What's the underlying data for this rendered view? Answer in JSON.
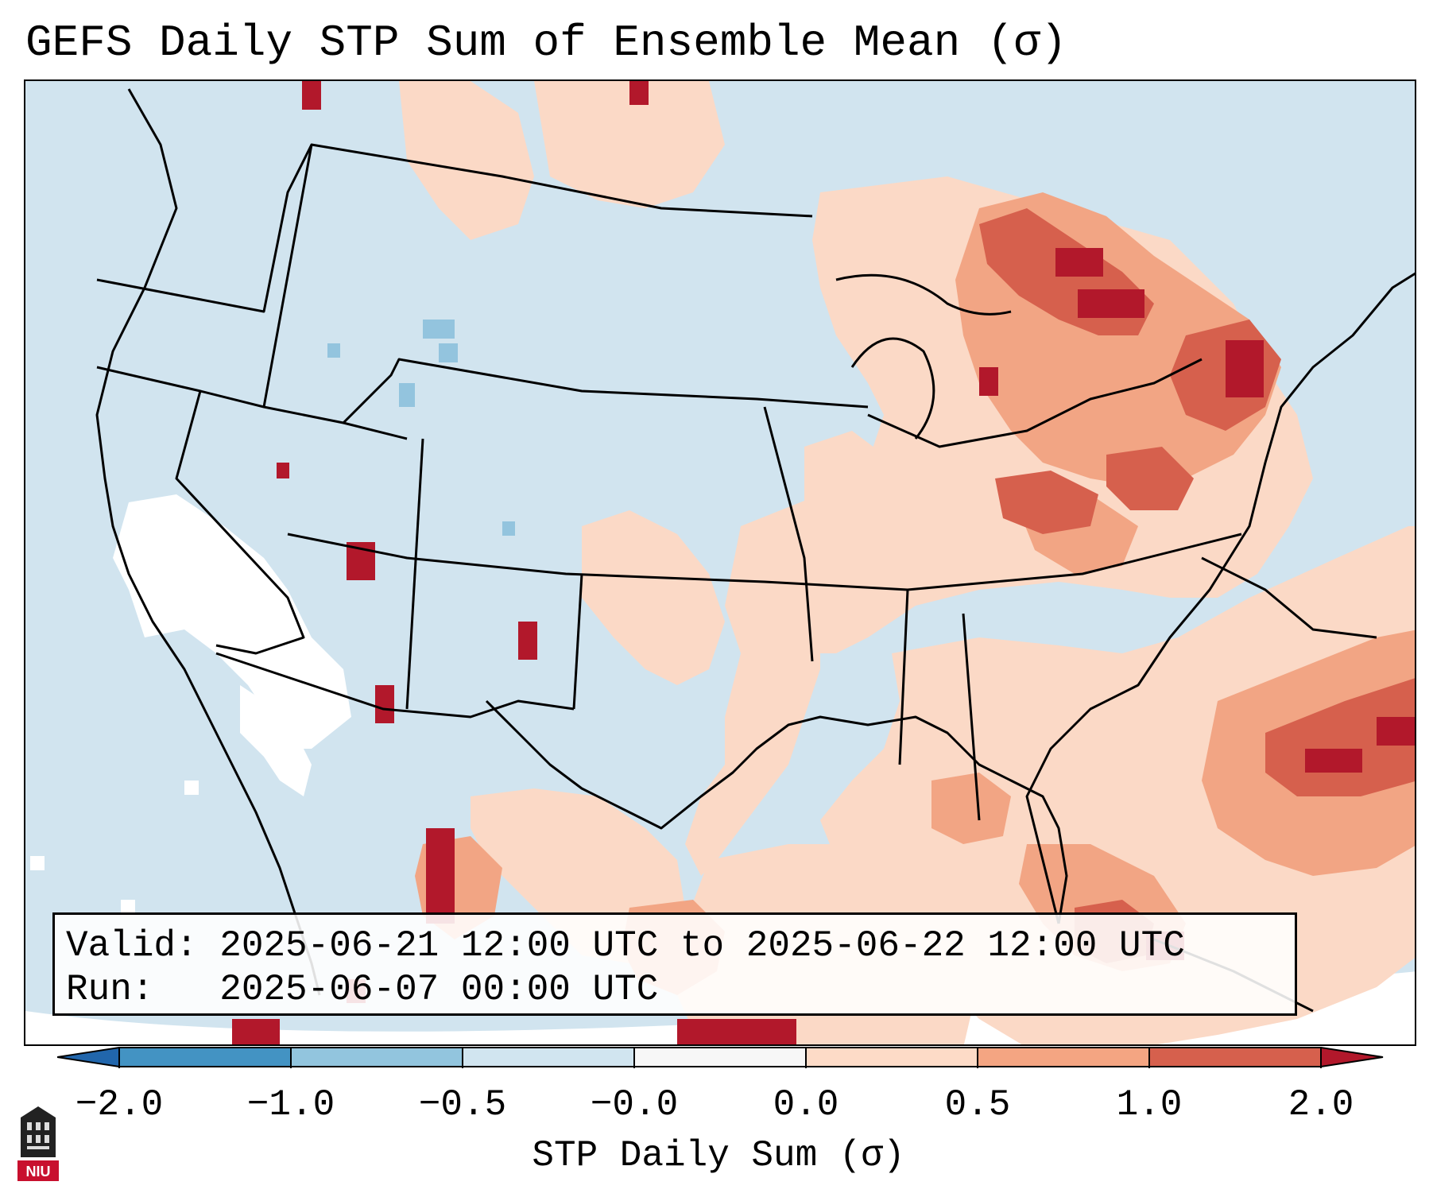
{
  "title": "GEFS Daily STP Sum of Ensemble Mean (σ)",
  "info": {
    "valid": "Valid: 2025-06-21 12:00 UTC to 2025-06-22 12:00 UTC",
    "run": "Run:   2025-06-07 00:00 UTC"
  },
  "colorbar": {
    "label": "STP Daily Sum (σ)",
    "ticks": [
      "−2.0",
      "−1.0",
      "−0.5",
      "−0.0",
      "0.0",
      "0.5",
      "1.0",
      "2.0"
    ],
    "bins": [
      {
        "range": "below -2.0",
        "color": "#2166ac"
      },
      {
        "range": "-2.0 to -1.0",
        "color": "#4393c3"
      },
      {
        "range": "-1.0 to -0.5",
        "color": "#92c5de"
      },
      {
        "range": "-0.5 to -0.0",
        "color": "#d1e5f0"
      },
      {
        "range": "-0.0 to 0.0",
        "color": "#f7f7f7"
      },
      {
        "range": "0.0 to 0.5",
        "color": "#fddbc7"
      },
      {
        "range": "0.5 to 1.0",
        "color": "#f4a582"
      },
      {
        "range": "1.0 to 2.0",
        "color": "#d6604d"
      },
      {
        "range": "above 2.0",
        "color": "#b2182b"
      }
    ]
  },
  "colors": {
    "background_field": "#d1e4ef",
    "near_zero": "#ffffff",
    "light_positive": "#fbd9c6",
    "medium_positive": "#f2a584",
    "strong_positive": "#d6604d",
    "very_strong_positive": "#b2182b",
    "light_negative": "#93c4de"
  },
  "logo": {
    "text": "NIU"
  }
}
